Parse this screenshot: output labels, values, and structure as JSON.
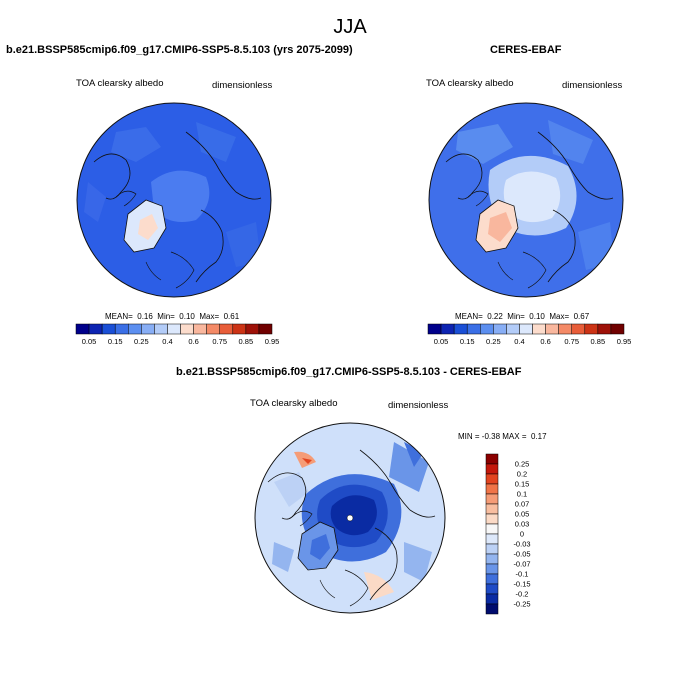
{
  "figure": {
    "title": "JJA"
  },
  "panels": [
    {
      "title": "b.e21.BSSP585cmip6.f09_g17.CMIP6-SSP5-8.5.103 (yrs 2075-2099)",
      "left_label": "TOA clearsky albedo",
      "right_label": "dimensionless",
      "stats": {
        "mean_label": "MEAN=",
        "mean": "0.16",
        "min_label": "Min=",
        "min": "0.10",
        "max_label": "Max=",
        "max": "0.61"
      }
    },
    {
      "title": "CERES-EBAF",
      "left_label": "TOA clearsky albedo",
      "right_label": "dimensionless",
      "stats": {
        "mean_label": "MEAN=",
        "mean": "0.22",
        "min_label": "Min=",
        "min": "0.10",
        "max_label": "Max=",
        "max": "0.67"
      }
    },
    {
      "title": "b.e21.BSSP585cmip6.f09_g17.CMIP6-SSP5-8.5.103 - CERES-EBAF",
      "left_label": "TOA clearsky albedo",
      "right_label": "dimensionless",
      "stats": {
        "min_label": "MIN =",
        "min": "-0.38",
        "max_label": "MAX =",
        "max": "0.17"
      }
    }
  ],
  "colorbars": {
    "albedo": {
      "colors": [
        "#00008b",
        "#0d24b2",
        "#1a4fd6",
        "#3a6fe6",
        "#5c8ff0",
        "#88aef5",
        "#b3ccf8",
        "#dce8fc",
        "#fcdccc",
        "#f9b79e",
        "#f48a67",
        "#e85d39",
        "#cc3315",
        "#9e1108",
        "#700000"
      ],
      "labels": [
        "0.05",
        "0.15",
        "0.25",
        "0.4",
        "0.6",
        "0.75",
        "0.85",
        "0.95"
      ]
    },
    "difference": {
      "colors": [
        "#8b0000",
        "#c4180c",
        "#e24420",
        "#f07448",
        "#f59c77",
        "#f8bea0",
        "#fbdac6",
        "#f7f7f7",
        "#dde8fa",
        "#bcd1f5",
        "#94b5ef",
        "#6a95e8",
        "#3f6fdc",
        "#1f4bc6",
        "#0a2ba3",
        "#000c6e"
      ],
      "labels": [
        "0.25",
        "0.2",
        "0.15",
        "0.1",
        "0.07",
        "0.05",
        "0.03",
        "0",
        "-0.03",
        "-0.05",
        "-0.07",
        "-0.1",
        "-0.15",
        "-0.2",
        "-0.25"
      ]
    }
  },
  "map_colors": {
    "ocean_model": "#2c5ee6",
    "ocean_ceres": "#3f6fea",
    "diff_bg": "#cfe0fa"
  }
}
